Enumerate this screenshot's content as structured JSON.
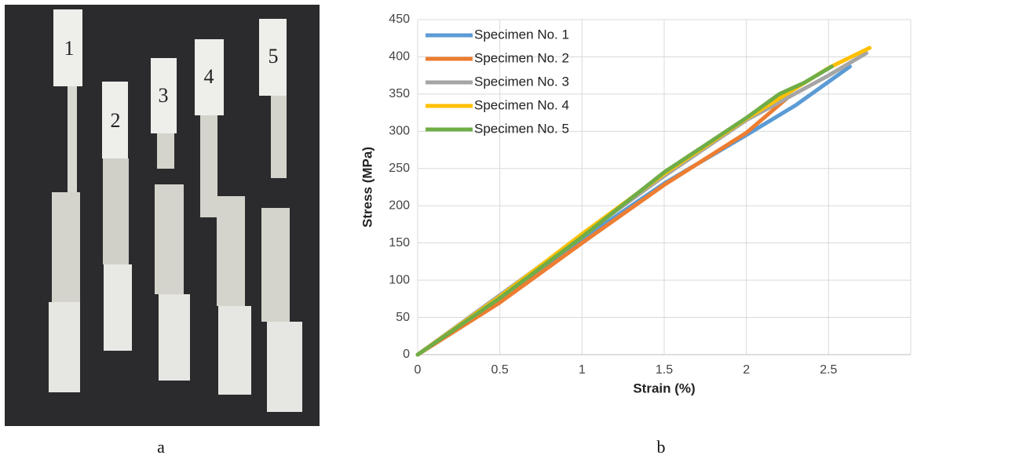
{
  "panel_labels": [
    "a",
    "b"
  ],
  "photo": {
    "specimen_labels": [
      "1",
      "2",
      "3",
      "4",
      "5"
    ]
  },
  "chart_data": {
    "type": "line",
    "xlabel": "Strain (%)",
    "ylabel": "Stress (MPa)",
    "xlim": [
      0,
      3
    ],
    "xticks": [
      0,
      0.5,
      1,
      1.5,
      2,
      2.5
    ],
    "ylim": [
      0,
      450
    ],
    "yticks": [
      0,
      50,
      100,
      150,
      200,
      250,
      300,
      350,
      400,
      450
    ],
    "grid": true,
    "legend": "upper-left",
    "series": [
      {
        "name": "Specimen No. 1",
        "color": "#5b9bd5",
        "x": [
          0,
          0.5,
          1,
          1.5,
          2,
          2.3,
          2.63
        ],
        "values": [
          0,
          75,
          155,
          230,
          295,
          335,
          387
        ]
      },
      {
        "name": "Specimen No. 2",
        "color": "#ed7d31",
        "x": [
          0,
          0.5,
          1,
          1.5,
          2,
          2.25
        ],
        "values": [
          0,
          70,
          150,
          228,
          298,
          345
        ]
      },
      {
        "name": "Specimen No. 3",
        "color": "#a5a5a5",
        "x": [
          0,
          0.5,
          1,
          1.5,
          2,
          2.5,
          2.73
        ],
        "values": [
          0,
          80,
          160,
          240,
          315,
          375,
          405
        ]
      },
      {
        "name": "Specimen No. 4",
        "color": "#ffc000",
        "x": [
          0,
          0.5,
          1,
          1.5,
          2,
          2.5,
          2.75
        ],
        "values": [
          0,
          78,
          162,
          243,
          317,
          385,
          412
        ]
      },
      {
        "name": "Specimen No. 5",
        "color": "#70ad47",
        "x": [
          0,
          0.5,
          1,
          1.5,
          2,
          2.2,
          2.35,
          2.52
        ],
        "values": [
          0,
          76,
          158,
          245,
          318,
          350,
          365,
          387
        ]
      }
    ]
  }
}
